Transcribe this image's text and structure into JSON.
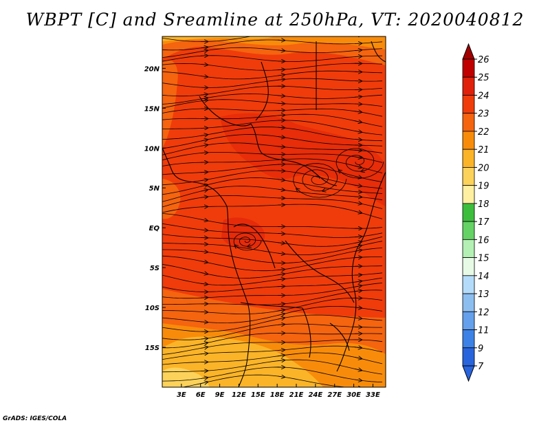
{
  "title": "WBPT [C] and Sreamline at 250hPa, VT: 2020040812",
  "credit": "GrADS: IGES/COLA",
  "map": {
    "lon_range": [
      0,
      35
    ],
    "lat_range": [
      -20,
      24
    ],
    "lon_ticks": [
      {
        "value": 3,
        "label": "3E"
      },
      {
        "value": 6,
        "label": "6E"
      },
      {
        "value": 9,
        "label": "9E"
      },
      {
        "value": 12,
        "label": "12E"
      },
      {
        "value": 15,
        "label": "15E"
      },
      {
        "value": 18,
        "label": "18E"
      },
      {
        "value": 21,
        "label": "21E"
      },
      {
        "value": 24,
        "label": "24E"
      },
      {
        "value": 27,
        "label": "27E"
      },
      {
        "value": 30,
        "label": "30E"
      },
      {
        "value": 33,
        "label": "33E"
      }
    ],
    "lat_ticks": [
      {
        "value": 20,
        "label": "20N"
      },
      {
        "value": 15,
        "label": "15N"
      },
      {
        "value": 10,
        "label": "10N"
      },
      {
        "value": 5,
        "label": "5N"
      },
      {
        "value": 0,
        "label": "EQ"
      },
      {
        "value": -5,
        "label": "5S"
      },
      {
        "value": -10,
        "label": "10S"
      },
      {
        "value": -15,
        "label": "15S"
      }
    ]
  },
  "colorbar": {
    "levels": [
      {
        "label": "26",
        "color": "#a00000"
      },
      {
        "label": "25",
        "color": "#c00000"
      },
      {
        "label": "24",
        "color": "#e0200a"
      },
      {
        "label": "23",
        "color": "#f03c0a"
      },
      {
        "label": "22",
        "color": "#f5640f"
      },
      {
        "label": "21",
        "color": "#f88c0a"
      },
      {
        "label": "20",
        "color": "#fbb428"
      },
      {
        "label": "19",
        "color": "#fcd25a"
      },
      {
        "label": "18",
        "color": "#fef0a0"
      },
      {
        "label": "17",
        "color": "#3cbe3c"
      },
      {
        "label": "16",
        "color": "#64d264"
      },
      {
        "label": "15",
        "color": "#b4f0b4"
      },
      {
        "label": "14",
        "color": "#e6fae6"
      },
      {
        "label": "13",
        "color": "#b4dcfa"
      },
      {
        "label": "12",
        "color": "#8cbef0"
      },
      {
        "label": "11",
        "color": "#64a0eb"
      },
      {
        "label": "9",
        "color": "#3c82e6"
      },
      {
        "label": "7",
        "color": "#2864dc"
      }
    ],
    "bottom_color": "#2864dc"
  }
}
